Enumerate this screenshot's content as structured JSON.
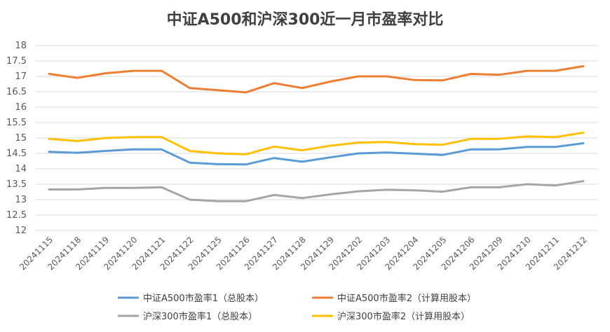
{
  "chart_data": {
    "type": "line",
    "title": "中证A500和沪深300近一月市盈率对比",
    "xlabel": "",
    "ylabel": "",
    "ylim": [
      12,
      18
    ],
    "yticks": [
      "12",
      "12.5",
      "13",
      "13.5",
      "14",
      "14.5",
      "15",
      "15.5",
      "16",
      "16.5",
      "17",
      "17.5",
      "18"
    ],
    "grid": true,
    "legend_position": "bottom",
    "categories": [
      "20241115",
      "20241118",
      "20241119",
      "20241120",
      "20241121",
      "20241122",
      "20241125",
      "20241126",
      "20241127",
      "20241128",
      "20241129",
      "20241202",
      "20241203",
      "20241204",
      "20241205",
      "20241206",
      "20241209",
      "20241210",
      "20241211",
      "20241212"
    ],
    "series": [
      {
        "name": "中证A500市盈率1（总股本）",
        "color": "#5B9BD5",
        "values": [
          14.55,
          14.52,
          14.58,
          14.63,
          14.63,
          14.2,
          14.15,
          14.14,
          14.35,
          14.23,
          14.37,
          14.5,
          14.53,
          14.49,
          14.45,
          14.63,
          14.63,
          14.71,
          14.71,
          14.83
        ]
      },
      {
        "name": "中证A500市盈率2（计算用股本）",
        "color": "#ED7D31",
        "values": [
          17.08,
          16.95,
          17.1,
          17.18,
          17.18,
          16.62,
          16.55,
          16.48,
          16.78,
          16.62,
          16.83,
          17.0,
          17.0,
          16.88,
          16.87,
          17.08,
          17.05,
          17.18,
          17.18,
          17.33
        ]
      },
      {
        "name": "沪深300市盈率1（总股本）",
        "color": "#A5A5A5",
        "values": [
          13.33,
          13.33,
          13.38,
          13.38,
          13.4,
          13.0,
          12.95,
          12.95,
          13.15,
          13.05,
          13.17,
          13.27,
          13.32,
          13.3,
          13.26,
          13.4,
          13.4,
          13.5,
          13.46,
          13.6
        ]
      },
      {
        "name": "沪深300市盈率2（计算用股本）",
        "color": "#FFC000",
        "values": [
          14.97,
          14.9,
          15.0,
          15.03,
          15.03,
          14.58,
          14.5,
          14.47,
          14.72,
          14.6,
          14.75,
          14.85,
          14.87,
          14.8,
          14.78,
          14.97,
          14.97,
          15.05,
          15.03,
          15.17
        ]
      }
    ]
  }
}
